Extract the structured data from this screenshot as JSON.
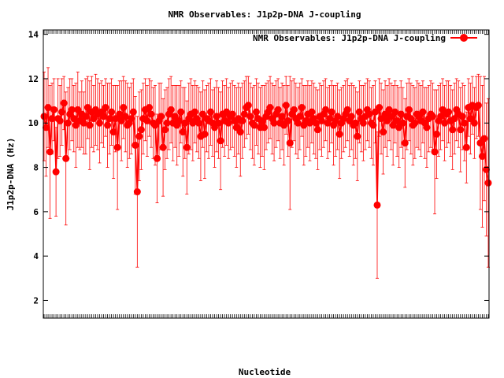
{
  "chart_data": {
    "type": "line",
    "title": "NMR Observables: J1p2p-DNA J-coupling",
    "xlabel": "Nucleotide",
    "ylabel": "J1p2p-DNA (Hz)",
    "ylim": [
      1.2,
      14.2
    ],
    "yticks": [
      2,
      4,
      6,
      8,
      10,
      12,
      14
    ],
    "grid": false,
    "legend": "top-right",
    "color": "#ff0000",
    "series": [
      {
        "name": "NMR Observables: J1p2p-DNA J-coupling",
        "values": [
          10.3,
          9.8,
          10.7,
          8.7,
          10.2,
          10.6,
          7.8,
          10.2,
          10.1,
          10.5,
          10.9,
          8.4,
          10.0,
          10.4,
          10.6,
          10.2,
          9.9,
          10.6,
          10.1,
          10.4,
          10.0,
          10.3,
          10.7,
          9.9,
          10.5,
          10.2,
          10.6,
          10.4,
          10.0,
          10.5,
          10.3,
          10.7,
          9.9,
          10.2,
          10.5,
          9.6,
          10.2,
          8.9,
          10.4,
          10.1,
          10.7,
          10.3,
          9.9,
          10.0,
          10.2,
          10.5,
          9.0,
          6.9,
          9.4,
          9.7,
          10.2,
          10.6,
          10.1,
          10.7,
          10.4,
          10.0,
          9.9,
          8.4,
          10.1,
          10.3,
          8.9,
          9.7,
          10.0,
          10.4,
          10.6,
          10.0,
          10.3,
          9.9,
          10.1,
          10.5,
          9.6,
          10.0,
          8.9,
          10.2,
          10.4,
          10.0,
          10.5,
          10.2,
          10.0,
          9.4,
          10.4,
          9.5,
          10.2,
          10.1,
          10.5,
          10.0,
          9.8,
          10.3,
          10.0,
          9.2,
          10.4,
          10.1,
          10.5,
          10.0,
          10.3,
          10.4,
          10.1,
          9.8,
          10.2,
          9.6,
          10.1,
          10.4,
          10.7,
          10.8,
          10.3,
          10.0,
          9.9,
          10.5,
          10.2,
          9.8,
          10.1,
          9.8,
          10.3,
          10.5,
          10.7,
          10.2,
          10.0,
          10.4,
          10.6,
          10.0,
          10.3,
          9.9,
          10.8,
          10.1,
          9.1,
          10.4,
          10.6,
          10.2,
          10.0,
          10.3,
          10.7,
          9.9,
          10.1,
          10.4,
          10.0,
          10.5,
          10.2,
          10.0,
          9.7,
          10.3,
          10.1,
          10.4,
          10.6,
          10.0,
          10.2,
          10.5,
          9.9,
          10.1,
          10.3,
          9.5,
          10.0,
          10.2,
          10.4,
          10.6,
          10.1,
          10.3,
          9.9,
          10.0,
          9.4,
          10.5,
          10.2,
          10.0,
          10.3,
          10.6,
          10.4,
          10.0,
          9.9,
          10.5,
          6.3,
          10.7,
          10.2,
          9.6,
          10.4,
          10.1,
          10.6,
          10.3,
          9.9,
          10.5,
          10.1,
          9.8,
          10.4,
          10.0,
          9.1,
          10.3,
          10.6,
          10.2,
          9.9,
          10.0,
          10.4,
          10.3,
          10.1,
          10.5,
          10.0,
          9.8,
          10.2,
          10.4,
          10.3,
          8.7,
          9.5,
          10.1,
          10.3,
          10.6,
          10.0,
          10.4,
          10.5,
          10.1,
          9.7,
          10.2,
          10.6,
          10.4,
          9.7,
          10.3,
          10.0,
          8.9,
          10.7,
          10.2,
          10.8,
          10.0,
          10.7,
          10.8,
          9.1,
          8.5,
          9.3,
          7.9,
          7.3
        ],
        "errors": [
          2.0,
          2.2,
          1.8,
          3.0,
          1.6,
          1.4,
          2.0,
          1.8,
          1.6,
          1.5,
          1.2,
          3.0,
          1.6,
          1.6,
          1.4,
          1.5,
          1.9,
          1.7,
          1.3,
          1.5,
          1.4,
          1.7,
          1.4,
          2.0,
          1.6,
          1.5,
          1.6,
          1.6,
          1.8,
          1.4,
          1.4,
          1.3,
          1.9,
          1.6,
          1.5,
          2.1,
          1.5,
          2.8,
          1.5,
          1.8,
          1.4,
          1.6,
          1.9,
          1.6,
          1.6,
          1.5,
          2.2,
          3.4,
          2.0,
          1.8,
          1.6,
          1.4,
          1.6,
          1.3,
          1.5,
          1.6,
          1.8,
          2.0,
          1.7,
          1.5,
          2.2,
          1.8,
          1.6,
          1.6,
          1.5,
          1.7,
          1.4,
          1.8,
          1.6,
          1.4,
          2.0,
          1.6,
          2.1,
          1.6,
          1.6,
          1.7,
          1.4,
          1.5,
          1.6,
          2.0,
          1.5,
          2.0,
          1.5,
          1.7,
          1.5,
          1.5,
          1.8,
          1.6,
          1.6,
          2.2,
          1.5,
          1.6,
          1.5,
          1.6,
          1.5,
          1.5,
          1.6,
          1.8,
          1.6,
          2.0,
          1.7,
          1.5,
          1.4,
          1.3,
          1.5,
          1.6,
          1.8,
          1.5,
          1.6,
          1.8,
          1.6,
          1.9,
          1.5,
          1.4,
          1.4,
          1.6,
          1.7,
          1.5,
          1.4,
          1.6,
          1.5,
          1.8,
          1.3,
          1.6,
          3.0,
          1.5,
          1.4,
          1.6,
          1.6,
          1.5,
          1.3,
          1.8,
          1.6,
          1.5,
          1.7,
          1.4,
          1.6,
          1.6,
          1.8,
          1.5,
          1.6,
          1.5,
          1.4,
          1.6,
          1.5,
          1.4,
          1.8,
          1.6,
          1.5,
          2.0,
          1.6,
          1.5,
          1.5,
          1.4,
          1.6,
          1.5,
          1.8,
          1.6,
          2.0,
          1.4,
          1.5,
          1.7,
          1.5,
          1.4,
          1.5,
          1.6,
          1.8,
          1.4,
          3.3,
          1.3,
          1.6,
          1.9,
          1.5,
          1.6,
          1.4,
          1.5,
          1.8,
          1.4,
          1.6,
          1.8,
          1.5,
          1.6,
          2.0,
          1.5,
          1.4,
          1.6,
          1.8,
          1.6,
          1.5,
          1.5,
          1.6,
          1.4,
          1.6,
          1.8,
          1.5,
          1.5,
          1.5,
          2.8,
          2.0,
          1.6,
          1.5,
          1.4,
          1.7,
          1.5,
          1.4,
          1.6,
          1.8,
          1.6,
          1.4,
          1.5,
          1.9,
          1.5,
          1.7,
          1.6,
          1.3,
          1.6,
          1.3,
          1.6,
          1.4,
          1.4,
          3.0,
          3.2,
          2.8,
          3.0,
          3.8
        ]
      }
    ]
  }
}
